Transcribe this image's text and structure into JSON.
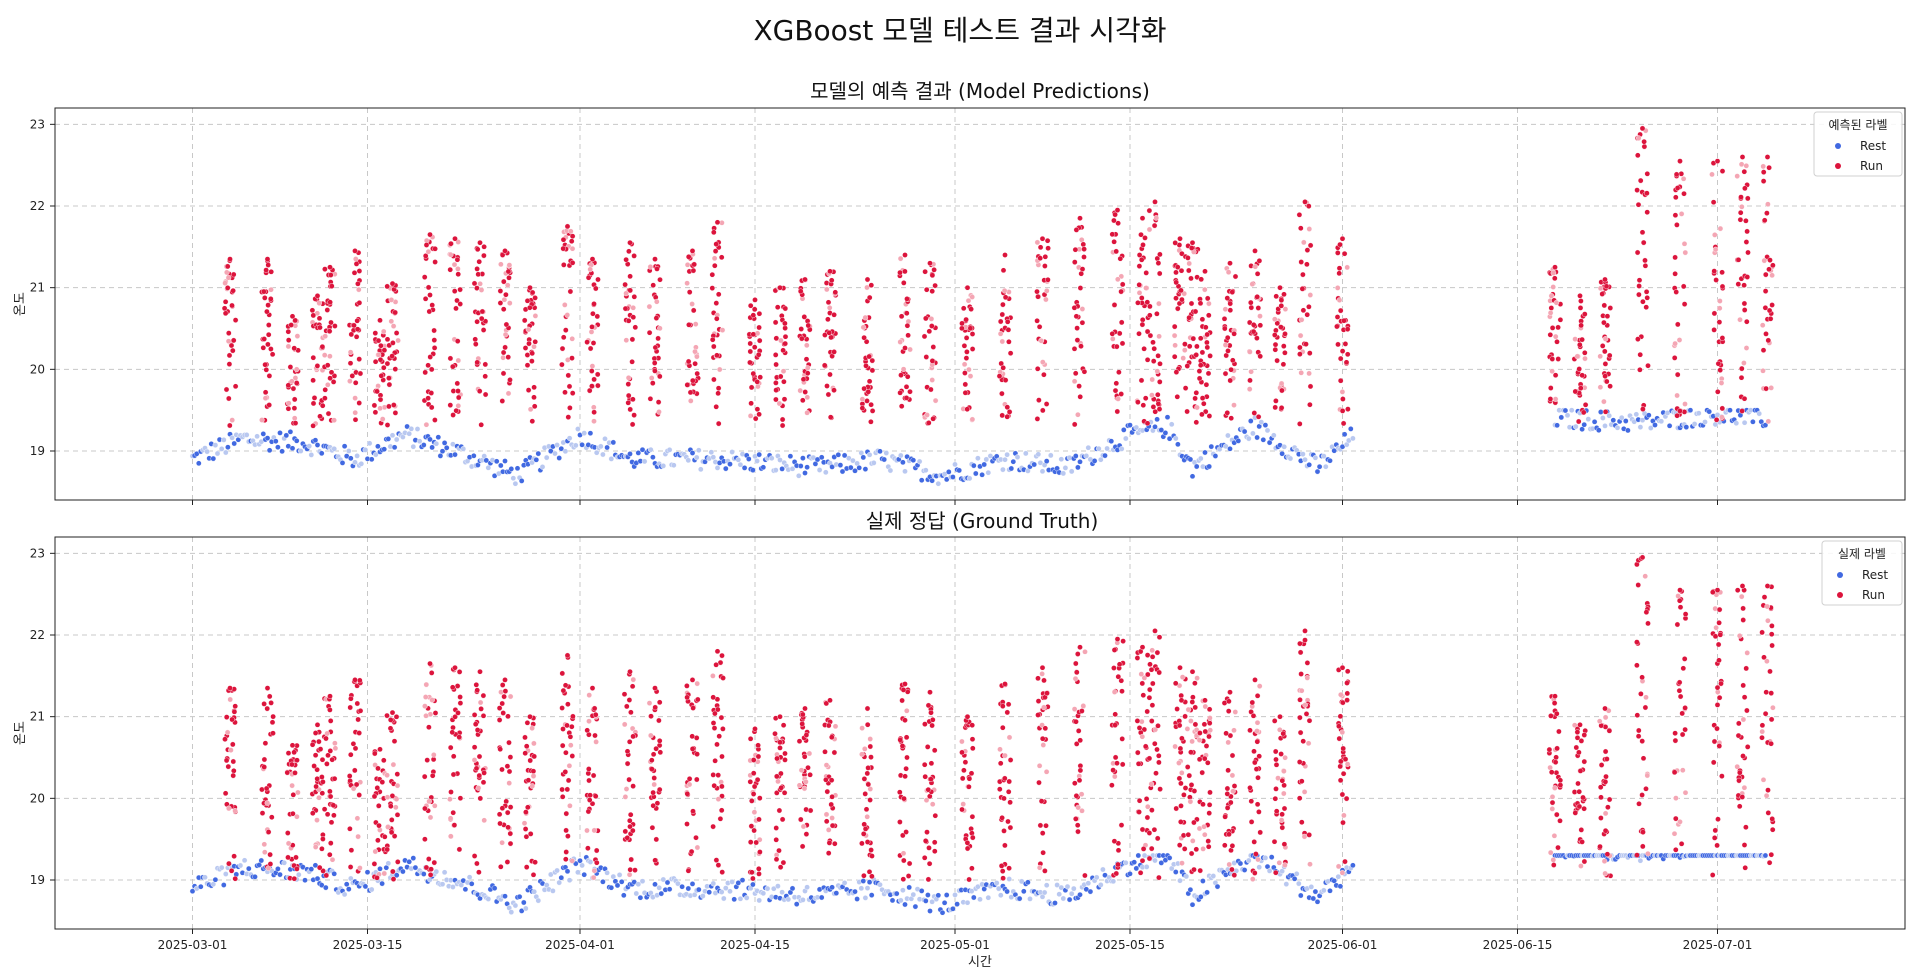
{
  "figure": {
    "suptitle": "XGBoost 모델 테스트 결과 시각화",
    "xlabel": "시간"
  },
  "colors": {
    "Rest": "#4169e1",
    "Run": "#dc143c",
    "Rest_light": "#b9c8f0",
    "Run_light": "#f4a6b4"
  },
  "chart_data": [
    {
      "type": "scatter",
      "title": "모델의 예측 결과 (Model Predictions)",
      "xlabel": "",
      "ylabel": "온도",
      "xlim": [
        "2025-02-18",
        "2025-07-16"
      ],
      "ylim": [
        18.4,
        23.2
      ],
      "x_ticks": [
        "2025-03-01",
        "2025-03-15",
        "2025-04-01",
        "2025-04-15",
        "2025-05-01",
        "2025-05-15",
        "2025-06-01",
        "2025-06-15",
        "2025-07-01"
      ],
      "x_tick_labels_visible": false,
      "y_ticks": [
        19,
        20,
        21,
        22,
        23
      ],
      "grid": true,
      "legend": {
        "title": "예측된 라벨",
        "placement": "top-right",
        "entries": [
          "Rest",
          "Run"
        ]
      },
      "series": [
        {
          "name": "Rest",
          "baseline": [
            [
              "2025-03-01",
              18.9
            ],
            [
              "2025-03-05",
              19.15
            ],
            [
              "2025-03-10",
              19.1
            ],
            [
              "2025-03-14",
              18.9
            ],
            [
              "2025-03-18",
              19.2
            ],
            [
              "2025-03-22",
              19.0
            ],
            [
              "2025-03-27",
              18.7
            ],
            [
              "2025-04-01",
              19.2
            ],
            [
              "2025-04-05",
              18.9
            ],
            [
              "2025-04-12",
              18.9
            ],
            [
              "2025-04-20",
              18.8
            ],
            [
              "2025-04-25",
              18.9
            ],
            [
              "2025-04-30",
              18.7
            ],
            [
              "2025-05-05",
              18.9
            ],
            [
              "2025-05-10",
              18.8
            ],
            [
              "2025-05-15",
              19.2
            ],
            [
              "2025-05-18",
              19.3
            ],
            [
              "2025-05-20",
              18.8
            ],
            [
              "2025-05-25",
              19.3
            ],
            [
              "2025-05-30",
              18.8
            ],
            [
              "2025-06-02",
              19.2
            ],
            [
              "2025-06-18",
              19.4
            ],
            [
              "2025-06-25",
              19.35
            ],
            [
              "2025-07-01",
              19.45
            ],
            [
              "2025-07-05",
              19.4
            ]
          ],
          "range": [
            18.6,
            19.5
          ]
        },
        {
          "name": "Run",
          "peaks": [
            [
              "2025-03-04",
              21.35
            ],
            [
              "2025-03-07",
              21.35
            ],
            [
              "2025-03-09",
              20.65
            ],
            [
              "2025-03-11",
              20.9
            ],
            [
              "2025-03-12",
              21.25
            ],
            [
              "2025-03-14",
              21.45
            ],
            [
              "2025-03-16",
              20.6
            ],
            [
              "2025-03-17",
              21.05
            ],
            [
              "2025-03-20",
              21.65
            ],
            [
              "2025-03-22",
              21.6
            ],
            [
              "2025-03-24",
              21.55
            ],
            [
              "2025-03-26",
              21.45
            ],
            [
              "2025-03-28",
              21.0
            ],
            [
              "2025-03-31",
              21.75
            ],
            [
              "2025-04-02",
              21.35
            ],
            [
              "2025-04-05",
              21.55
            ],
            [
              "2025-04-07",
              21.35
            ],
            [
              "2025-04-10",
              21.45
            ],
            [
              "2025-04-12",
              21.8
            ],
            [
              "2025-04-15",
              20.85
            ],
            [
              "2025-04-17",
              21.0
            ],
            [
              "2025-04-19",
              21.1
            ],
            [
              "2025-04-21",
              21.2
            ],
            [
              "2025-04-24",
              21.1
            ],
            [
              "2025-04-27",
              21.4
            ],
            [
              "2025-04-29",
              21.3
            ],
            [
              "2025-05-02",
              21.0
            ],
            [
              "2025-05-05",
              21.4
            ],
            [
              "2025-05-08",
              21.6
            ],
            [
              "2025-05-11",
              21.85
            ],
            [
              "2025-05-14",
              21.95
            ],
            [
              "2025-05-16",
              21.85
            ],
            [
              "2025-05-17",
              22.05
            ],
            [
              "2025-05-19",
              21.6
            ],
            [
              "2025-05-20",
              21.55
            ],
            [
              "2025-05-21",
              21.2
            ],
            [
              "2025-05-23",
              21.3
            ],
            [
              "2025-05-25",
              21.45
            ],
            [
              "2025-05-27",
              21.0
            ],
            [
              "2025-05-29",
              22.05
            ],
            [
              "2025-06-01",
              21.6
            ],
            [
              "2025-06-18",
              21.25
            ],
            [
              "2025-06-20",
              20.9
            ],
            [
              "2025-06-22",
              21.1
            ],
            [
              "2025-06-25",
              22.95
            ],
            [
              "2025-06-28",
              22.55
            ],
            [
              "2025-07-01",
              22.55
            ],
            [
              "2025-07-03",
              22.6
            ],
            [
              "2025-07-05",
              22.6
            ]
          ],
          "floor": 19.3
        }
      ]
    },
    {
      "type": "scatter",
      "title": "실제 정답 (Ground Truth)",
      "xlabel": "시간",
      "ylabel": "온도",
      "xlim": [
        "2025-02-18",
        "2025-07-16"
      ],
      "ylim": [
        18.4,
        23.2
      ],
      "x_ticks": [
        "2025-03-01",
        "2025-03-15",
        "2025-04-01",
        "2025-04-15",
        "2025-05-01",
        "2025-05-15",
        "2025-06-01",
        "2025-06-15",
        "2025-07-01"
      ],
      "x_tick_labels_visible": true,
      "y_ticks": [
        19,
        20,
        21,
        22,
        23
      ],
      "grid": true,
      "legend": {
        "title": "실제 라벨",
        "placement": "top-right",
        "entries": [
          "Rest",
          "Run"
        ]
      },
      "series": [
        {
          "name": "Rest",
          "baseline": [
            [
              "2025-03-01",
              18.9
            ],
            [
              "2025-03-05",
              19.15
            ],
            [
              "2025-03-10",
              19.1
            ],
            [
              "2025-03-14",
              18.9
            ],
            [
              "2025-03-18",
              19.2
            ],
            [
              "2025-03-22",
              19.0
            ],
            [
              "2025-03-27",
              18.7
            ],
            [
              "2025-04-01",
              19.2
            ],
            [
              "2025-04-05",
              18.9
            ],
            [
              "2025-04-12",
              18.9
            ],
            [
              "2025-04-20",
              18.8
            ],
            [
              "2025-04-25",
              18.9
            ],
            [
              "2025-04-30",
              18.7
            ],
            [
              "2025-05-05",
              18.9
            ],
            [
              "2025-05-10",
              18.8
            ],
            [
              "2025-05-15",
              19.2
            ],
            [
              "2025-05-18",
              19.3
            ],
            [
              "2025-05-20",
              18.8
            ],
            [
              "2025-05-25",
              19.3
            ],
            [
              "2025-05-30",
              18.8
            ],
            [
              "2025-06-02",
              19.2
            ],
            [
              "2025-06-18",
              19.4
            ],
            [
              "2025-06-25",
              19.35
            ],
            [
              "2025-07-01",
              19.45
            ],
            [
              "2025-07-05",
              19.4
            ]
          ],
          "range": [
            18.6,
            19.3
          ]
        },
        {
          "name": "Run",
          "peaks": [
            [
              "2025-03-04",
              21.35
            ],
            [
              "2025-03-07",
              21.35
            ],
            [
              "2025-03-09",
              20.65
            ],
            [
              "2025-03-11",
              20.9
            ],
            [
              "2025-03-12",
              21.25
            ],
            [
              "2025-03-14",
              21.45
            ],
            [
              "2025-03-16",
              20.6
            ],
            [
              "2025-03-17",
              21.05
            ],
            [
              "2025-03-20",
              21.65
            ],
            [
              "2025-03-22",
              21.6
            ],
            [
              "2025-03-24",
              21.55
            ],
            [
              "2025-03-26",
              21.45
            ],
            [
              "2025-03-28",
              21.0
            ],
            [
              "2025-03-31",
              21.75
            ],
            [
              "2025-04-02",
              21.35
            ],
            [
              "2025-04-05",
              21.55
            ],
            [
              "2025-04-07",
              21.35
            ],
            [
              "2025-04-10",
              21.45
            ],
            [
              "2025-04-12",
              21.8
            ],
            [
              "2025-04-15",
              20.85
            ],
            [
              "2025-04-17",
              21.0
            ],
            [
              "2025-04-19",
              21.1
            ],
            [
              "2025-04-21",
              21.2
            ],
            [
              "2025-04-24",
              21.1
            ],
            [
              "2025-04-27",
              21.4
            ],
            [
              "2025-04-29",
              21.3
            ],
            [
              "2025-05-02",
              21.0
            ],
            [
              "2025-05-05",
              21.4
            ],
            [
              "2025-05-08",
              21.6
            ],
            [
              "2025-05-11",
              21.85
            ],
            [
              "2025-05-14",
              21.95
            ],
            [
              "2025-05-16",
              21.85
            ],
            [
              "2025-05-17",
              22.05
            ],
            [
              "2025-05-19",
              21.6
            ],
            [
              "2025-05-20",
              21.55
            ],
            [
              "2025-05-21",
              21.2
            ],
            [
              "2025-05-23",
              21.3
            ],
            [
              "2025-05-25",
              21.45
            ],
            [
              "2025-05-27",
              21.0
            ],
            [
              "2025-05-29",
              22.05
            ],
            [
              "2025-06-01",
              21.6
            ],
            [
              "2025-06-18",
              21.25
            ],
            [
              "2025-06-20",
              20.9
            ],
            [
              "2025-06-22",
              21.1
            ],
            [
              "2025-06-25",
              22.95
            ],
            [
              "2025-06-28",
              22.55
            ],
            [
              "2025-07-01",
              22.55
            ],
            [
              "2025-07-03",
              22.6
            ],
            [
              "2025-07-05",
              22.6
            ]
          ],
          "floor": 19.0
        }
      ]
    }
  ]
}
